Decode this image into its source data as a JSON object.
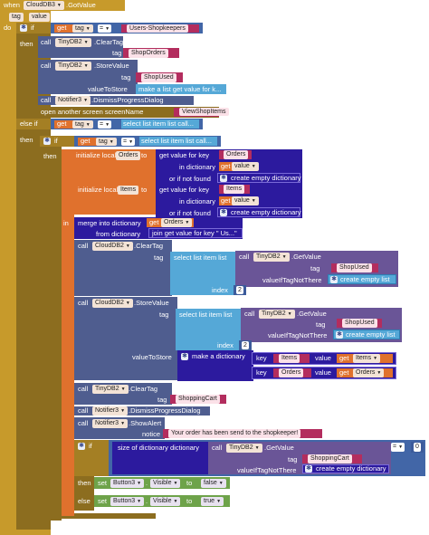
{
  "event": {
    "when": "when",
    "component": "CloudDB3",
    "event": ".GotValue",
    "params": [
      "tag",
      "value"
    ],
    "do": "do"
  },
  "if1": {
    "if": "if",
    "get": "get",
    "tag": "tag",
    "eq": "=",
    "literal": "Users-Shopkeepers",
    "then": "then"
  },
  "tinydb_clear1": {
    "call": "call",
    "component": "TinyDB2",
    "method": ".ClearTag",
    "tag_label": "tag",
    "tag_value": "ShopOrders"
  },
  "tinydb_store1": {
    "call": "call",
    "component": "TinyDB2",
    "method": ".StoreValue",
    "tag_label": "tag",
    "tag_value": "ShopUsed",
    "value_label": "valueToStore",
    "value_block": "make a list get value for k..."
  },
  "notifier_dismiss1": {
    "call": "call",
    "component": "Notifier3",
    "method": ".DismissProgressDialog"
  },
  "open_screen": {
    "label": "open another screen  screenName",
    "value": "ViewShopItems"
  },
  "elseif": {
    "label": "else if",
    "get": "get",
    "tag": "tag",
    "eq": "=",
    "select": "select list item  list call..."
  },
  "then2": "then",
  "if2": {
    "if": "if",
    "get": "get",
    "tag": "tag",
    "eq": "=",
    "select": "select list item  list call..."
  },
  "then3": "then",
  "init_local": {
    "label": "initialize local",
    "name1": "Orders",
    "to": "to",
    "get_value": "get value for key",
    "key1": "Orders",
    "in_dict": "in dictionary",
    "get": "get",
    "value": "value",
    "if_not_found": "or if not found",
    "empty_dict": "create empty dictionary",
    "name2": "Items",
    "key2": "Items",
    "in": "in"
  },
  "merge": {
    "label": "merge into dictionary",
    "get": "get",
    "name": "Orders",
    "from_dict": "from dictionary",
    "join": "join get value for key \" Us...\""
  },
  "cloud_clear": {
    "call": "call",
    "component": "CloudDB2",
    "method": ".ClearTag",
    "tag_label": "tag",
    "select": "select list item  list",
    "call2": "call",
    "tinydb": "TinyDB2",
    "getvalue": ".GetValue",
    "tag2": "tag",
    "tag_value": "ShopUsed",
    "if_not": "valueIfTagNotThere",
    "empty_list": "create empty list",
    "index": "index",
    "index_value": "2"
  },
  "cloud_store": {
    "call": "call",
    "component": "CloudDB2",
    "method": ".StoreValue",
    "tag_label": "tag",
    "select": "select list item  list",
    "call2": "call",
    "tinydb": "TinyDB2",
    "getvalue": ".GetValue",
    "tag2": "tag",
    "tag_value": "ShopUsed",
    "if_not": "valueIfTagNotThere",
    "empty_list": "create empty list",
    "index": "index",
    "index_value": "2",
    "value_label": "valueToStore",
    "make_dict": "make a dictionary",
    "key": "key",
    "key1": "Items",
    "val": "value",
    "get": "get",
    "val1": "Items",
    "key2": "Orders",
    "val2": "Orders"
  },
  "tinydb_clear2": {
    "call": "call",
    "component": "TinyDB2",
    "method": ".ClearTag",
    "tag_label": "tag",
    "tag_value": "ShoppingCart"
  },
  "notifier_dismiss2": {
    "call": "call",
    "component": "Notifier3",
    "method": ".DismissProgressDialog"
  },
  "notifier_alert": {
    "call": "call",
    "component": "Notifier3",
    "method": ".ShowAlert",
    "notice_label": "notice",
    "notice_value": "Your order has been send to the shopkeeper!"
  },
  "if3": {
    "if": "if",
    "size": "size of dictionary  dictionary",
    "call": "call",
    "component": "TinyDB2",
    "method": ".GetValue",
    "tag_label": "tag",
    "tag_value": "ShoppingCart",
    "if_not": "valueIfTagNotThere",
    "empty_dict": "create empty dictionary",
    "eq": "=",
    "zero": "0"
  },
  "then4": {
    "then": "then",
    "set": "set",
    "component": "Button3",
    "prop": "Visible",
    "to": "to",
    "value": "false"
  },
  "else4": {
    "else": "else",
    "set": "set",
    "component": "Button3",
    "prop": "Visible",
    "to": "to",
    "value": "true"
  },
  "colors": {
    "event": "#c79a2b",
    "control": "#8c6d1f",
    "component": "#4f5d8f",
    "text": "#b32d5e",
    "dictionary": "#2c1a9e",
    "list": "#55a8d7",
    "variable": "#e0712d",
    "logic": "#6ea34a"
  }
}
